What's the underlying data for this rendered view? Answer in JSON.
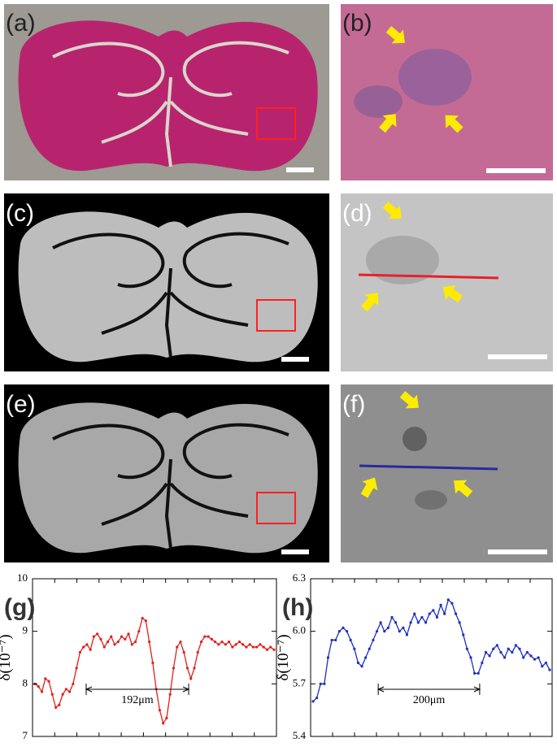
{
  "panels": [
    "(a)",
    "(b)",
    "(c)",
    "(d)",
    "(e)",
    "(f)"
  ],
  "chart_data": [
    {
      "type": "line",
      "label": "(g)",
      "y_label": "δ(10⁻⁷)",
      "color": "#e0201c",
      "annotation": "192μm",
      "ylim": [
        7,
        10
      ],
      "yticks": [
        7,
        8,
        9,
        10
      ],
      "values": [
        8.0,
        7.95,
        7.85,
        8.1,
        8.05,
        7.8,
        7.55,
        7.6,
        7.8,
        7.9,
        7.85,
        8.0,
        8.3,
        8.6,
        8.7,
        8.75,
        8.65,
        8.9,
        8.95,
        8.85,
        8.7,
        8.8,
        8.9,
        8.75,
        8.8,
        8.9,
        8.85,
        8.95,
        8.75,
        8.8,
        9.0,
        9.25,
        9.2,
        8.8,
        8.4,
        7.9,
        7.5,
        7.25,
        7.35,
        7.8,
        8.3,
        8.7,
        8.8,
        8.6,
        8.3,
        8.1,
        8.3,
        8.6,
        8.8,
        8.9,
        8.9,
        8.85,
        8.8,
        8.75,
        8.8,
        8.75,
        8.8,
        8.7,
        8.75,
        8.8,
        8.75,
        8.7,
        8.75,
        8.7,
        8.7,
        8.75,
        8.7,
        8.65,
        8.7,
        8.65
      ]
    },
    {
      "type": "line",
      "label": "(h)",
      "y_label": "δ(10⁻⁷)",
      "color": "#1f2fc0",
      "annotation": "200μm",
      "ylim": [
        5.4,
        6.3
      ],
      "yticks": [
        5.4,
        5.7,
        {
          "value": 6,
          "label": "6.0"
        },
        6.3
      ],
      "values": [
        5.6,
        5.62,
        5.7,
        5.7,
        5.85,
        5.95,
        5.95,
        6.0,
        6.02,
        6.0,
        5.95,
        5.9,
        5.82,
        5.8,
        5.85,
        5.9,
        5.95,
        6.0,
        6.05,
        6.0,
        6.02,
        6.08,
        6.05,
        6.0,
        6.02,
        5.98,
        6.05,
        6.1,
        6.05,
        6.08,
        6.05,
        6.1,
        6.12,
        6.08,
        6.15,
        6.1,
        6.18,
        6.16,
        6.1,
        6.05,
        5.98,
        5.9,
        5.85,
        5.76,
        5.76,
        5.82,
        5.88,
        5.86,
        5.9,
        5.92,
        5.88,
        5.85,
        5.9,
        5.88,
        5.92,
        5.9,
        5.85,
        5.88,
        5.86,
        5.84,
        5.85,
        5.8,
        5.82,
        5.78
      ]
    }
  ]
}
